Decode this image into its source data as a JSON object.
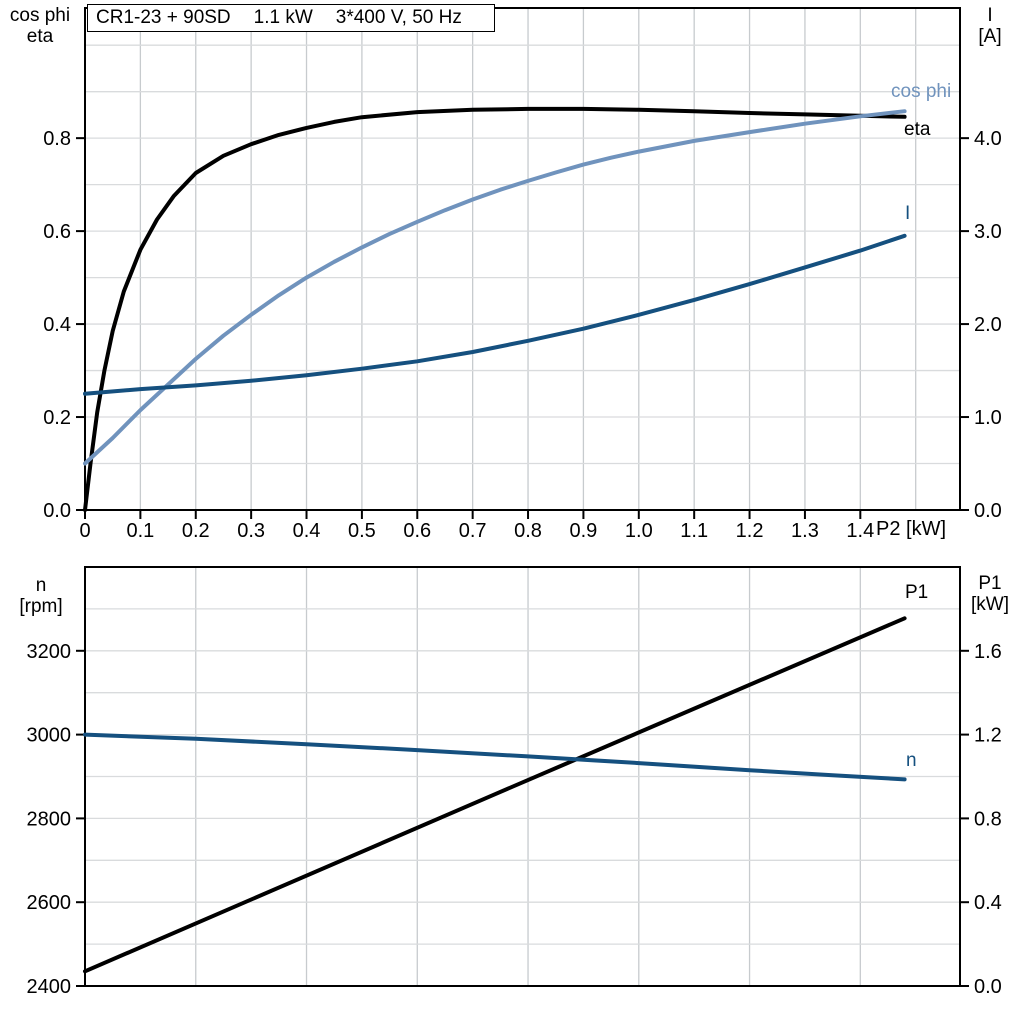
{
  "title": {
    "model": "CR1-23 + 90SD",
    "power": "1.1 kW",
    "supply": "3*400 V, 50 Hz"
  },
  "colors": {
    "black": "#000000",
    "dark_blue": "#15507f",
    "light_blue": "#7093bd",
    "grid_vertical": "#c7cbce",
    "grid_horizontal": "#d9dbdd",
    "axis": "#000000",
    "background": "#ffffff"
  },
  "chart_data": [
    {
      "type": "line",
      "title": "CR1-23 + 90SD 1.1 kW 3*400 V, 50 Hz",
      "legend_position": "curve-end-right",
      "grid": true,
      "x_axis": {
        "label": "P2 [kW]",
        "range": [
          0,
          1.58
        ],
        "tick_values": [
          0,
          0.1,
          0.2,
          0.3,
          0.4,
          0.5,
          0.6,
          0.7,
          0.8,
          0.9,
          1.0,
          1.1,
          1.2,
          1.3,
          1.4
        ],
        "tick_labels": [
          "0",
          "0.1",
          "0.2",
          "0.3",
          "0.4",
          "0.5",
          "0.6",
          "0.7",
          "0.8",
          "0.9",
          "1.0",
          "1.1",
          "1.2",
          "1.3",
          "1.4"
        ],
        "grid_step": 0.1
      },
      "y_left": {
        "label_lines": [
          "cos phi",
          "eta"
        ],
        "range": [
          0,
          1.08
        ],
        "tick_values": [
          0,
          0.2,
          0.4,
          0.6,
          0.8
        ],
        "tick_labels": [
          "0.0",
          "0.2",
          "0.4",
          "0.6",
          "0.8"
        ],
        "grid_step": 0.1
      },
      "y_right": {
        "label_lines": [
          "I",
          "[A]"
        ],
        "range": [
          0,
          5.4
        ],
        "tick_values": [
          0,
          1,
          2,
          3,
          4
        ],
        "tick_labels": [
          "0.0",
          "1.0",
          "2.0",
          "3.0",
          "4.0"
        ]
      },
      "series": [
        {
          "name": "eta",
          "label": "eta",
          "axis": "left",
          "color": "black",
          "x": [
            0,
            0.01,
            0.022,
            0.035,
            0.05,
            0.07,
            0.1,
            0.13,
            0.16,
            0.2,
            0.25,
            0.3,
            0.35,
            0.4,
            0.45,
            0.5,
            0.6,
            0.7,
            0.8,
            0.9,
            1.0,
            1.1,
            1.2,
            1.3,
            1.4,
            1.48
          ],
          "y": [
            0,
            0.1,
            0.21,
            0.3,
            0.385,
            0.47,
            0.56,
            0.625,
            0.675,
            0.725,
            0.762,
            0.787,
            0.807,
            0.822,
            0.835,
            0.845,
            0.856,
            0.861,
            0.863,
            0.863,
            0.861,
            0.858,
            0.854,
            0.851,
            0.848,
            0.846
          ]
        },
        {
          "name": "cos phi",
          "label": "cos phi",
          "axis": "left",
          "color": "light_blue",
          "x": [
            0,
            0.05,
            0.1,
            0.15,
            0.2,
            0.25,
            0.3,
            0.35,
            0.4,
            0.45,
            0.5,
            0.55,
            0.6,
            0.65,
            0.7,
            0.75,
            0.8,
            0.85,
            0.9,
            0.95,
            1.0,
            1.1,
            1.2,
            1.3,
            1.4,
            1.48
          ],
          "y": [
            0.1,
            0.155,
            0.215,
            0.27,
            0.325,
            0.375,
            0.42,
            0.462,
            0.5,
            0.534,
            0.565,
            0.594,
            0.62,
            0.645,
            0.668,
            0.689,
            0.708,
            0.726,
            0.743,
            0.758,
            0.771,
            0.794,
            0.813,
            0.831,
            0.847,
            0.858
          ]
        },
        {
          "name": "I",
          "label": "I",
          "axis": "right",
          "color": "dark_blue",
          "x": [
            0,
            0.1,
            0.2,
            0.3,
            0.4,
            0.5,
            0.6,
            0.7,
            0.8,
            0.9,
            1.0,
            1.1,
            1.2,
            1.3,
            1.4,
            1.48
          ],
          "y": [
            1.25,
            1.3,
            1.34,
            1.39,
            1.45,
            1.52,
            1.6,
            1.7,
            1.82,
            1.95,
            2.1,
            2.26,
            2.43,
            2.61,
            2.79,
            2.95
          ]
        }
      ]
    },
    {
      "type": "line",
      "title": "",
      "legend_position": "curve-end-right",
      "grid": true,
      "x_axis": {
        "label": "",
        "range": [
          0,
          1.58
        ],
        "tick_values": [],
        "tick_labels": [],
        "grid_step": 0.2
      },
      "y_left": {
        "label_lines": [
          "n",
          "[rpm]"
        ],
        "range": [
          2400,
          3400
        ],
        "tick_values": [
          2400,
          2600,
          2800,
          3000,
          3200
        ],
        "tick_labels": [
          "2400",
          "2600",
          "2800",
          "3000",
          "3200"
        ],
        "grid_step": 100
      },
      "y_right": {
        "label_lines": [
          "P1",
          "[kW]"
        ],
        "range": [
          0,
          2.0
        ],
        "tick_values": [
          0,
          0.4,
          0.8,
          1.2,
          1.6
        ],
        "tick_labels": [
          "0.0",
          "0.4",
          "0.8",
          "1.2",
          "1.6"
        ]
      },
      "series": [
        {
          "name": "P1",
          "label": "P1",
          "axis": "right",
          "color": "black",
          "x": [
            0,
            0.74,
            1.48
          ],
          "y": [
            0.07,
            0.915,
            1.755
          ]
        },
        {
          "name": "n",
          "label": "n",
          "axis": "left",
          "color": "dark_blue",
          "x": [
            0,
            0.2,
            0.4,
            0.6,
            0.8,
            1.0,
            1.2,
            1.35,
            1.48
          ],
          "y": [
            3000,
            2990,
            2977,
            2963,
            2948,
            2932,
            2915,
            2903,
            2893
          ]
        }
      ]
    }
  ]
}
